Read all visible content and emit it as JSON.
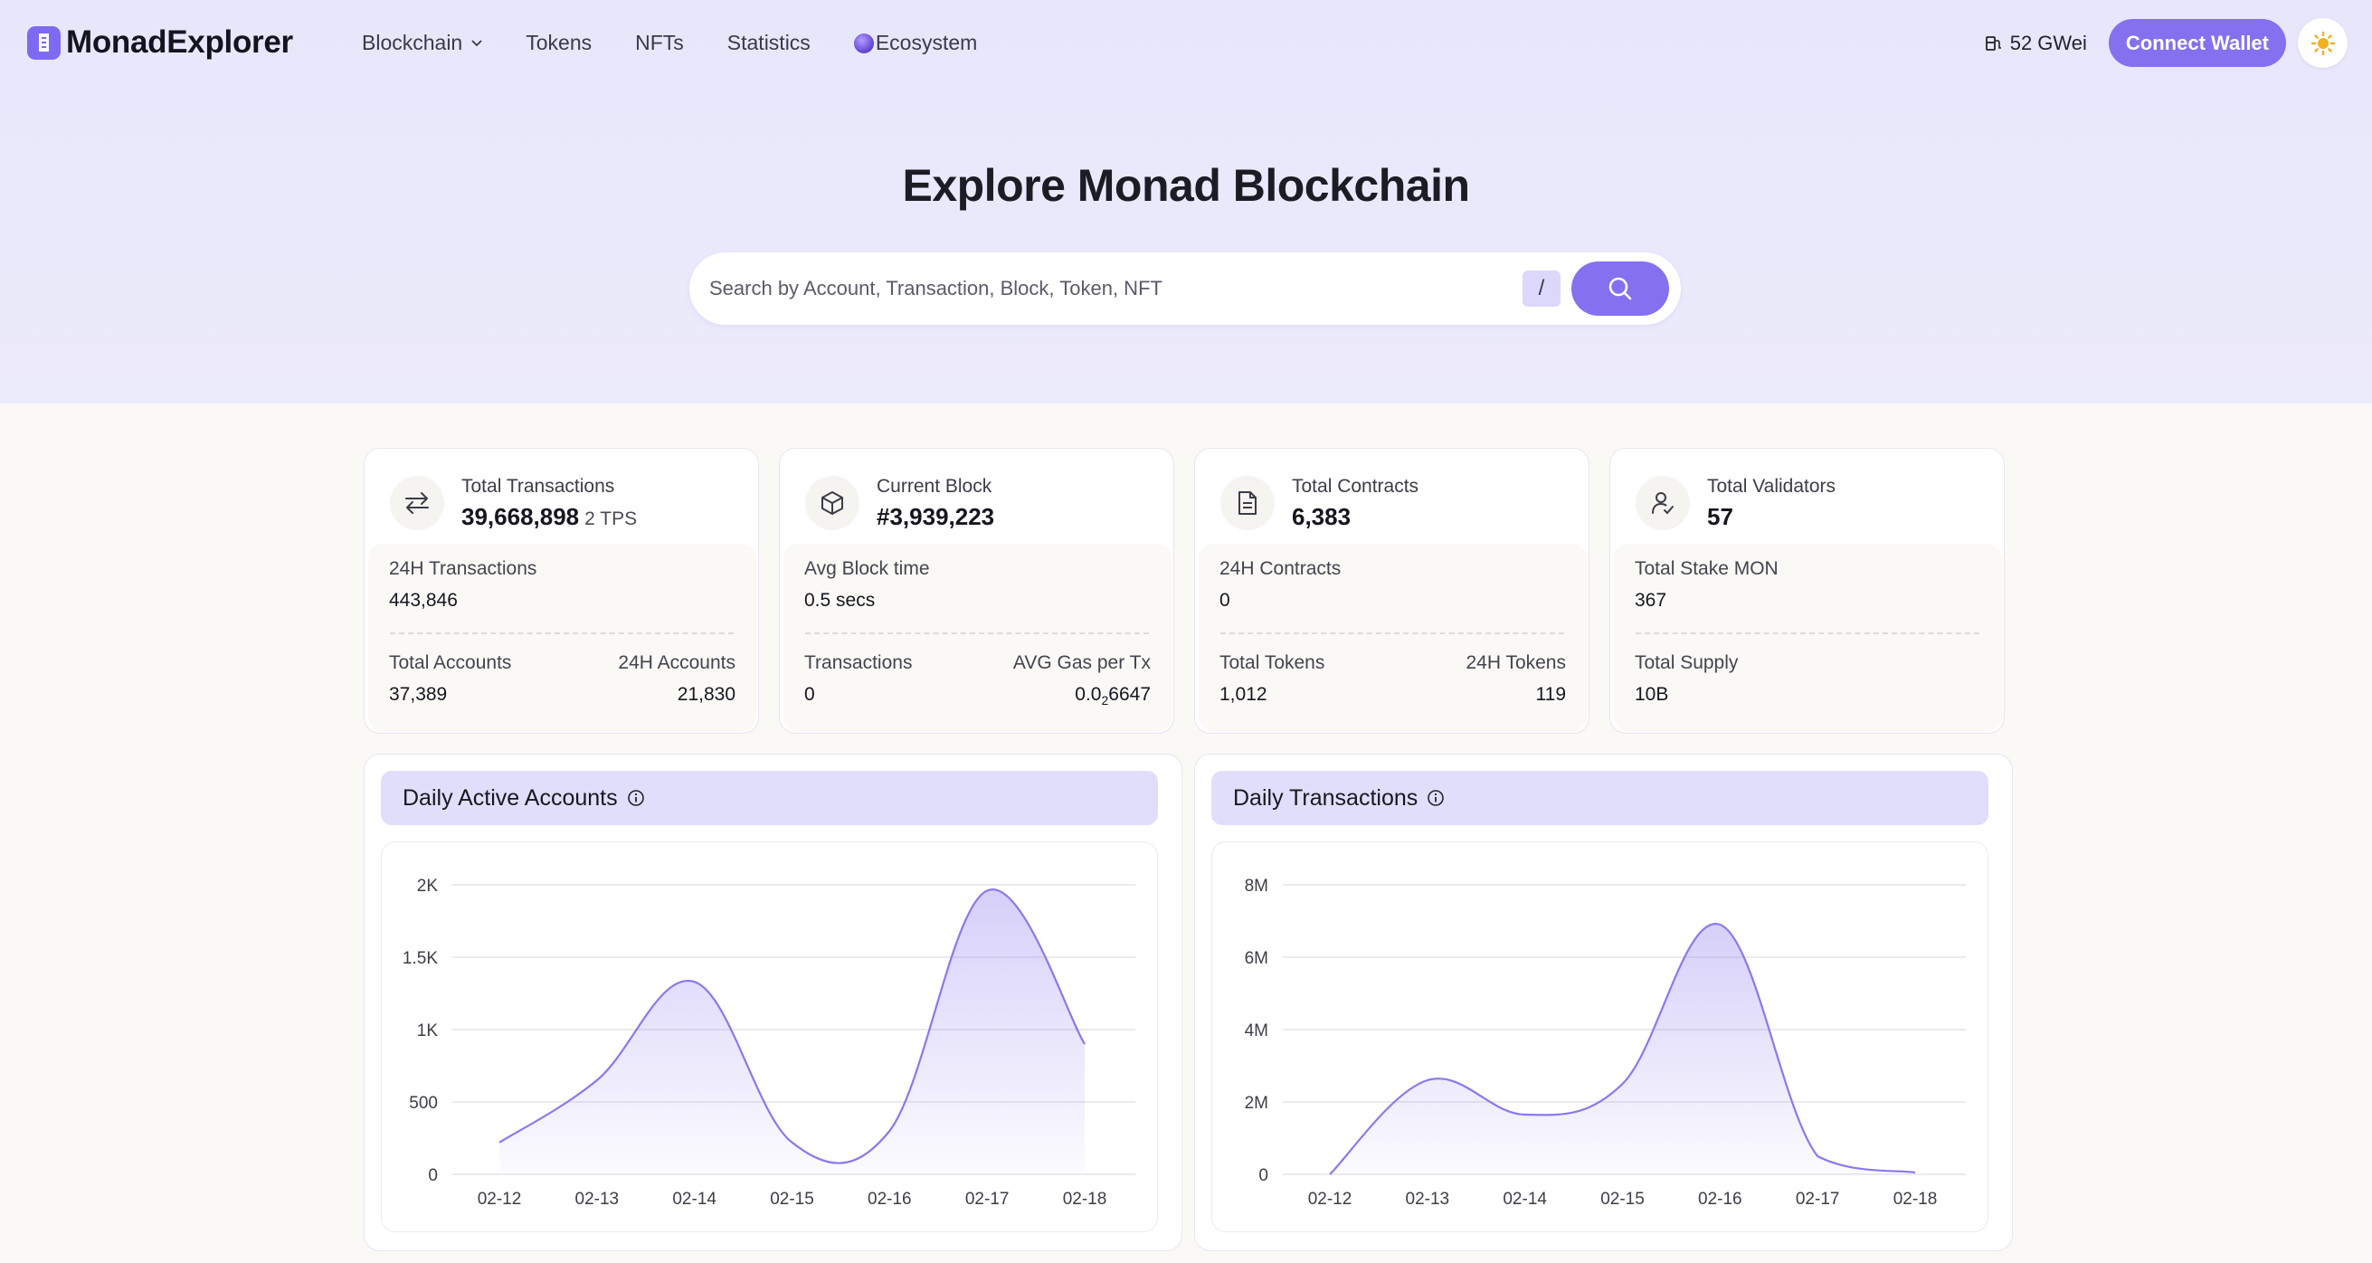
{
  "brand": {
    "name": "MonadExplorer"
  },
  "nav": {
    "items": [
      {
        "label": "Blockchain",
        "has_dropdown": true
      },
      {
        "label": "Tokens"
      },
      {
        "label": "NFTs"
      },
      {
        "label": "Statistics"
      },
      {
        "label": "Ecosystem"
      }
    ]
  },
  "header": {
    "gas_price": "52 GWei",
    "connect_label": "Connect Wallet",
    "theme_icon": "sun-icon"
  },
  "hero": {
    "title": "Explore Monad Blockchain",
    "search_placeholder": "Search by Account, Transaction, Block, Token, NFT",
    "search_value": "",
    "shortcut_key": "/"
  },
  "cards": [
    {
      "icon": "transfer-arrows-icon",
      "title": "Total Transactions",
      "value": "39,668,898",
      "value_suffix": "2 TPS",
      "row1": {
        "label": "24H Transactions",
        "value": "443,846"
      },
      "row2_left": {
        "label": "Total Accounts",
        "value": "37,389"
      },
      "row2_right": {
        "label": "24H Accounts",
        "value": "21,830"
      }
    },
    {
      "icon": "cube-icon",
      "title": "Current Block",
      "value": "#3,939,223",
      "row1": {
        "label": "Avg Block time",
        "value": "0.5 secs"
      },
      "row2_left": {
        "label": "Transactions",
        "value": "0"
      },
      "row2_right": {
        "label": "AVG Gas per Tx",
        "value_prefix": "0.0",
        "value_sub": "2",
        "value_rest": "6647"
      }
    },
    {
      "icon": "document-icon",
      "title": "Total Contracts",
      "value": "6,383",
      "row1": {
        "label": "24H Contracts",
        "value": "0"
      },
      "row2_left": {
        "label": "Total Tokens",
        "value": "1,012"
      },
      "row2_right": {
        "label": "24H Tokens",
        "value": "119"
      }
    },
    {
      "icon": "user-check-icon",
      "title": "Total Validators",
      "value": "57",
      "row1": {
        "label": "Total Stake MON",
        "value": "367"
      },
      "row2_left": {
        "label": "Total Supply",
        "value": "10B"
      }
    }
  ],
  "chart_data": [
    {
      "type": "area",
      "title": "Daily Active Accounts",
      "x": [
        "02-12",
        "02-13",
        "02-14",
        "02-15",
        "02-16",
        "02-17",
        "02-18"
      ],
      "series": [
        {
          "values": [
            220,
            650,
            1330,
            220,
            300,
            1960,
            900
          ]
        }
      ],
      "ylim": [
        0,
        2000
      ],
      "yticks": [
        0,
        500,
        1000,
        1500,
        2000
      ],
      "ytick_labels": [
        "0",
        "500",
        "1K",
        "1.5K",
        "2K"
      ],
      "grid": true,
      "color": "#8b78ee"
    },
    {
      "type": "area",
      "title": "Daily Transactions",
      "x": [
        "02-12",
        "02-13",
        "02-14",
        "02-15",
        "02-16",
        "02-17",
        "02-18"
      ],
      "series": [
        {
          "values": [
            0,
            2600000,
            1650000,
            2500000,
            6900000,
            500000,
            50000
          ]
        }
      ],
      "ylim": [
        0,
        8000000
      ],
      "yticks": [
        0,
        2000000,
        4000000,
        6000000,
        8000000
      ],
      "ytick_labels": [
        "0",
        "2M",
        "4M",
        "6M",
        "8M"
      ],
      "grid": true,
      "color": "#8b78ee"
    }
  ]
}
